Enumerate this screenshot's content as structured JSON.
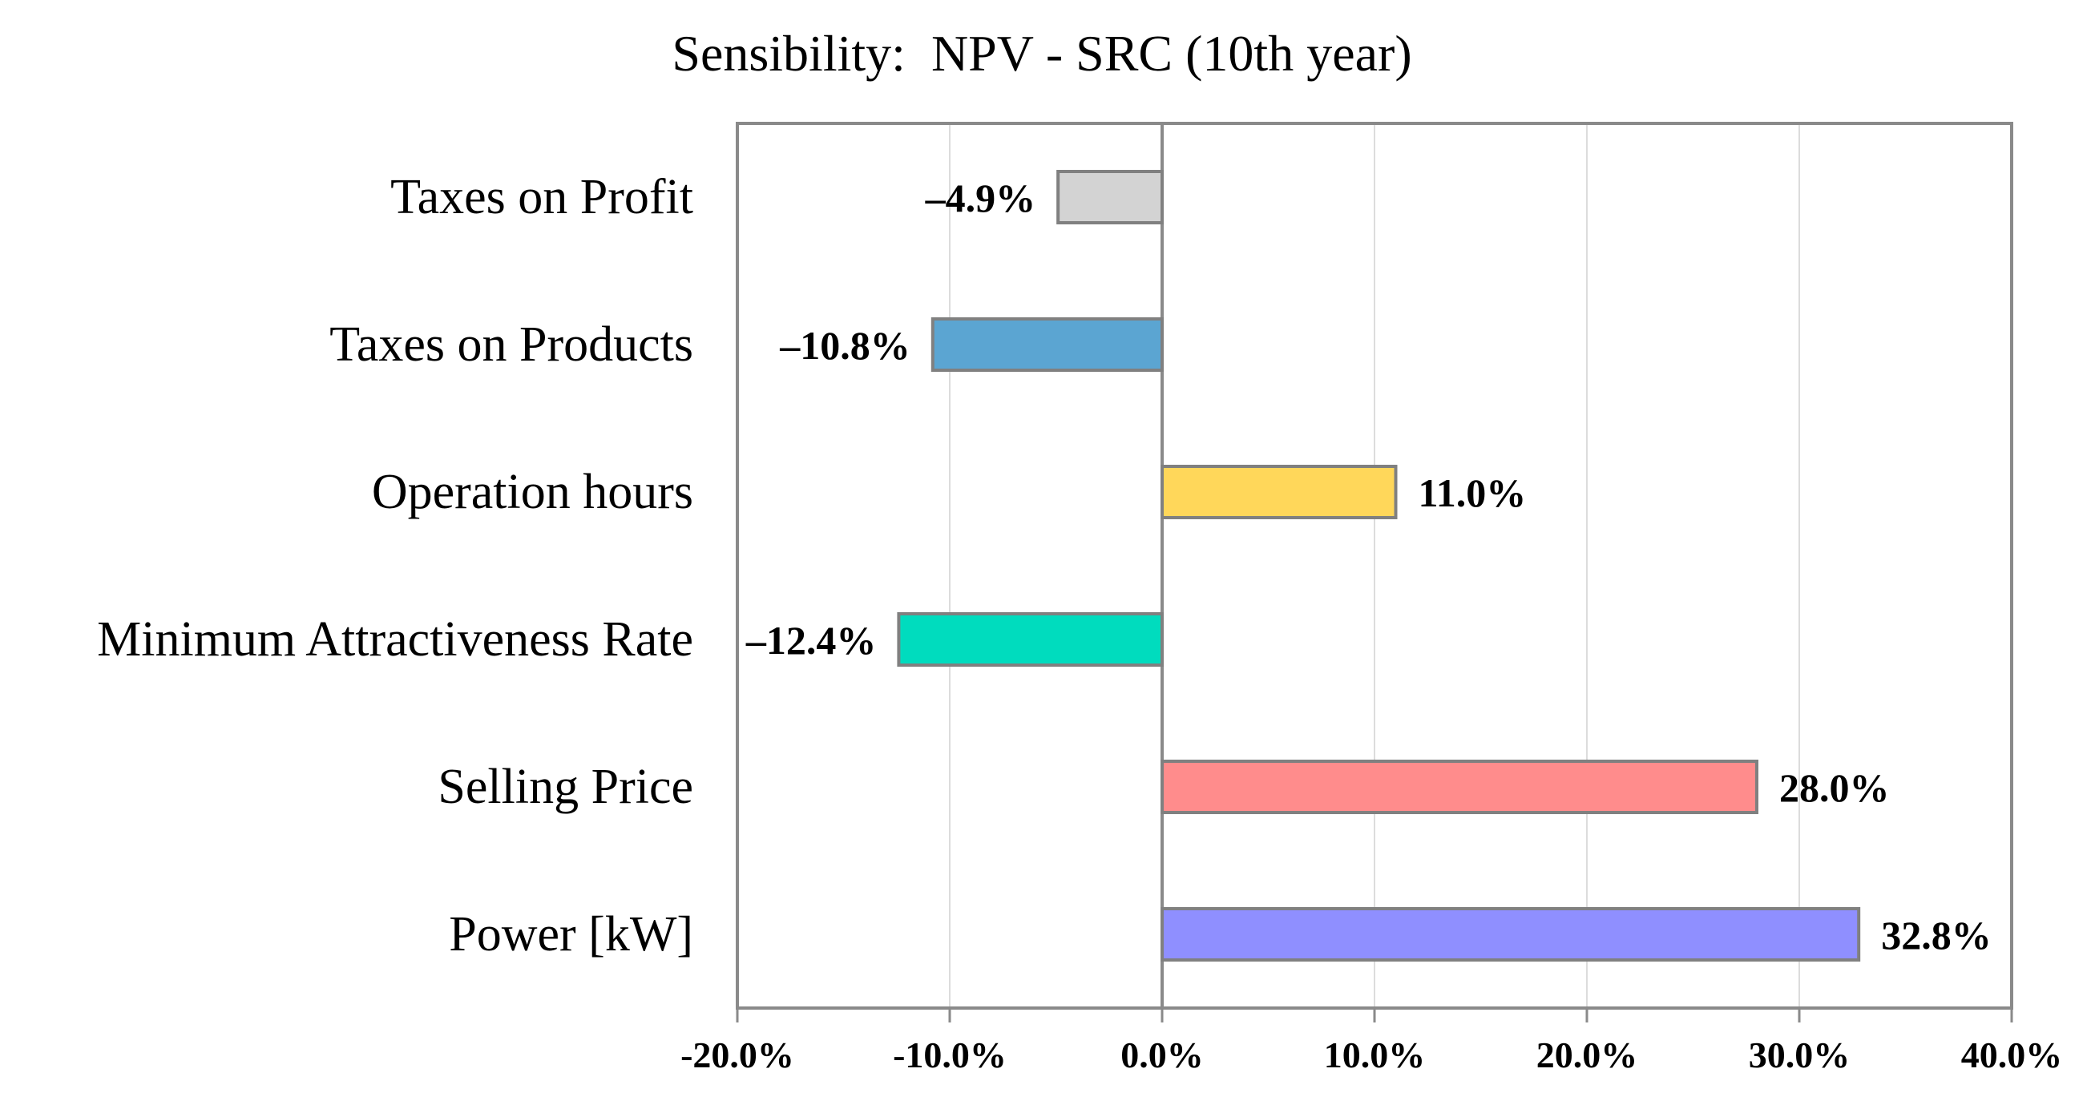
{
  "chart_data": {
    "type": "bar",
    "orientation": "horizontal",
    "title": "Sensibility:  NPV - SRC (10th year)",
    "xlabel": "",
    "ylabel": "",
    "xlim": [
      -20,
      40
    ],
    "grid": true,
    "categories": [
      "Taxes on Profit",
      "Taxes on Products",
      "Operation hours",
      "Minimum Attractiveness Rate",
      "Selling Price",
      "Power [kW]"
    ],
    "values": [
      -4.9,
      -10.8,
      11.0,
      -12.4,
      28.0,
      32.8
    ],
    "value_labels": [
      "–4.9%",
      "–10.8%",
      "11.0%",
      "–12.4%",
      "28.0%",
      "32.8%"
    ],
    "colors": [
      "#d3d3d3",
      "#5ba5d2",
      "#ffd75a",
      "#00dcbe",
      "#ff8c8c",
      "#8f8fff"
    ],
    "xticks": [
      -20,
      -10,
      0,
      10,
      20,
      30,
      40
    ],
    "xtick_labels": [
      "-20.0%",
      "-10.0%",
      "0.0%",
      "10.0%",
      "20.0%",
      "30.0%",
      "40.0%"
    ]
  }
}
